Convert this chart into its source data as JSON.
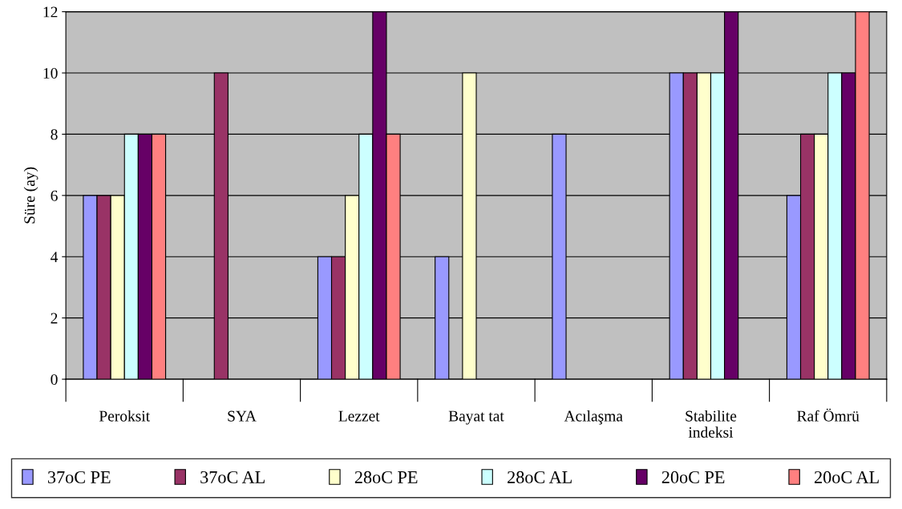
{
  "chart_data": {
    "type": "bar",
    "ylabel": "Süre (ay)",
    "categories": [
      "Peroksit",
      "SYA",
      "Lezzet",
      "Bayat tat",
      "Acılaşma",
      "Stabilite\nindeksi",
      "Raf Ömrü"
    ],
    "series": [
      {
        "name": "37oC PE",
        "color": "#9999ff",
        "values": [
          6,
          null,
          4,
          4,
          8,
          10,
          6
        ]
      },
      {
        "name": "37oC AL",
        "color": "#993366",
        "values": [
          6,
          10,
          4,
          null,
          null,
          10,
          8
        ]
      },
      {
        "name": "28oC PE",
        "color": "#ffffcc",
        "values": [
          6,
          null,
          6,
          10,
          null,
          10,
          8
        ]
      },
      {
        "name": "28oC AL",
        "color": "#ccffff",
        "values": [
          8,
          null,
          8,
          null,
          null,
          10,
          10
        ]
      },
      {
        "name": "20oC PE",
        "color": "#660066",
        "values": [
          8,
          null,
          12,
          null,
          null,
          12,
          10
        ]
      },
      {
        "name": "20oC AL",
        "color": "#ff8080",
        "values": [
          8,
          null,
          8,
          null,
          null,
          null,
          12
        ]
      }
    ],
    "ylim": [
      0,
      12
    ],
    "yticks": [
      0,
      2,
      4,
      6,
      8,
      10,
      12
    ],
    "grid": "y",
    "legend": "bottom"
  }
}
